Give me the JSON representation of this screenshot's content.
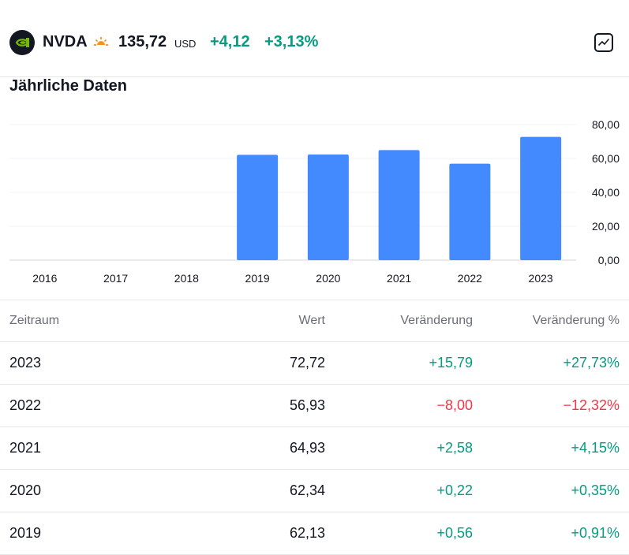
{
  "header": {
    "ticker": "NVDA",
    "price": "135,72",
    "currency": "USD",
    "change": "+4,12",
    "change_pct": "+3,13%",
    "logo_icon": "nvidia-logo-icon",
    "session_icon": "sun-icon",
    "chart_button_icon": "line-chart-icon"
  },
  "section": {
    "title": "Jährliche Daten"
  },
  "chart_data": {
    "type": "bar",
    "categories": [
      "2016",
      "2017",
      "2018",
      "2019",
      "2020",
      "2021",
      "2022",
      "2023"
    ],
    "values": [
      null,
      null,
      null,
      62.13,
      62.34,
      64.93,
      56.93,
      72.72
    ],
    "y_ticks": [
      "0,00",
      "20,00",
      "40,00",
      "60,00",
      "80,00"
    ],
    "ylim": [
      0,
      80
    ],
    "bar_color": "#448aff",
    "title": "",
    "xlabel": "",
    "ylabel": ""
  },
  "table": {
    "headers": [
      "Zeitraum",
      "Wert",
      "Veränderung",
      "Veränderung %"
    ],
    "rows": [
      {
        "period": "2023",
        "value": "72,72",
        "change": "+15,79",
        "change_pct": "+27,73%",
        "direction": "up"
      },
      {
        "period": "2022",
        "value": "56,93",
        "change": "−8,00",
        "change_pct": "−12,32%",
        "direction": "down"
      },
      {
        "period": "2021",
        "value": "64,93",
        "change": "+2,58",
        "change_pct": "+4,15%",
        "direction": "up"
      },
      {
        "period": "2020",
        "value": "62,34",
        "change": "+0,22",
        "change_pct": "+0,35%",
        "direction": "up"
      },
      {
        "period": "2019",
        "value": "62,13",
        "change": "+0,56",
        "change_pct": "+0,91%",
        "direction": "up"
      }
    ]
  },
  "colors": {
    "positive": "#089981",
    "negative": "#f23645",
    "accent": "#448aff",
    "session": "#f7931a"
  }
}
